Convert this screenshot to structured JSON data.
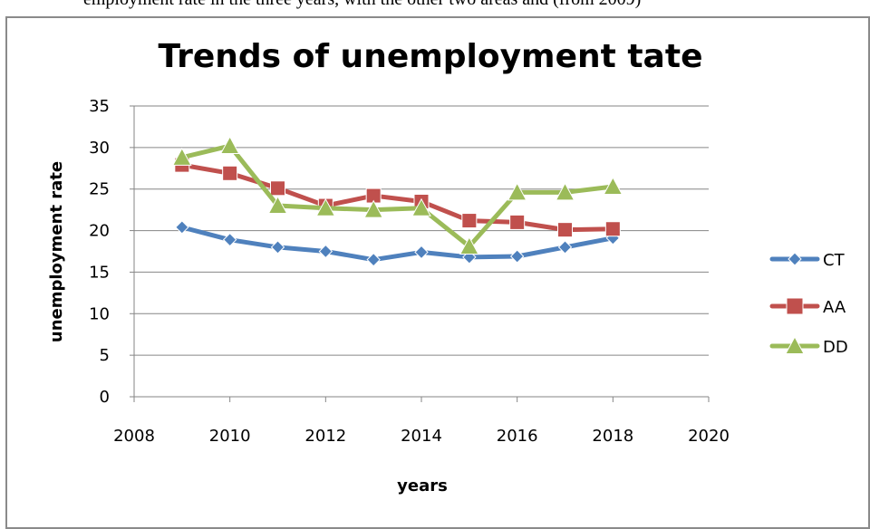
{
  "caption_fragment": "employment rate in the three years, with the other two areas and (from 2009)",
  "chart_data": {
    "type": "line",
    "title": "Trends of unemployment tate",
    "xlabel": "years",
    "ylabel": "unemployment rate",
    "xlim": [
      2008,
      2020
    ],
    "ylim": [
      0,
      35
    ],
    "x_ticks": [
      2008,
      2010,
      2012,
      2014,
      2016,
      2018,
      2020
    ],
    "y_ticks": [
      0,
      5,
      10,
      15,
      20,
      25,
      30,
      35
    ],
    "grid": "horizontal",
    "legend_position": "right",
    "series": [
      {
        "name": "CT",
        "color": "#4f81bd",
        "marker": "diamond",
        "x": [
          2009,
          2010,
          2011,
          2012,
          2013,
          2014,
          2015,
          2016,
          2017,
          2018
        ],
        "y": [
          20.4,
          18.9,
          18.0,
          17.5,
          16.5,
          17.4,
          16.8,
          16.9,
          18.0,
          19.1
        ]
      },
      {
        "name": "AA",
        "color": "#c0504d",
        "marker": "square",
        "x": [
          2009,
          2010,
          2011,
          2012,
          2013,
          2014,
          2015,
          2016,
          2017,
          2018
        ],
        "y": [
          27.9,
          26.9,
          25.1,
          23.0,
          24.2,
          23.5,
          21.2,
          21.0,
          20.1,
          20.2
        ]
      },
      {
        "name": "DD",
        "color": "#9bbb59",
        "marker": "triangle",
        "x": [
          2009,
          2010,
          2011,
          2012,
          2013,
          2014,
          2015,
          2016,
          2017,
          2018
        ],
        "y": [
          28.8,
          30.2,
          23.0,
          22.7,
          22.5,
          22.7,
          18.1,
          24.6,
          24.6,
          25.3
        ]
      }
    ]
  }
}
